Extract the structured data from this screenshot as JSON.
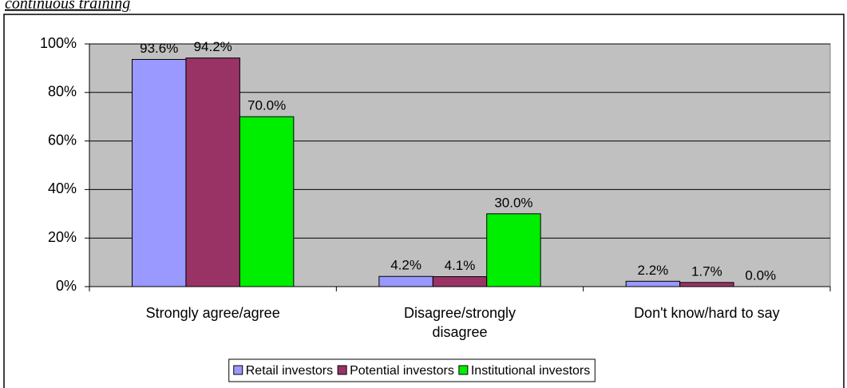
{
  "heading": "continuous training",
  "chart_data": {
    "type": "bar",
    "categories": [
      "Strongly agree/agree",
      "Disagree/strongly disagree",
      "Don't know/hard to say"
    ],
    "series": [
      {
        "name": "Retail investors",
        "color": "#9999ff",
        "values": [
          93.6,
          4.2,
          2.2
        ],
        "value_labels": [
          "93.6%",
          "4.2%",
          "2.2%"
        ]
      },
      {
        "name": "Potential investors",
        "color": "#993366",
        "values": [
          94.2,
          4.1,
          1.7
        ],
        "value_labels": [
          "94.2%",
          "4.1%",
          "1.7%"
        ]
      },
      {
        "name": "Institutional investors",
        "color": "#00ee00",
        "values": [
          70.0,
          30.0,
          0.0
        ],
        "value_labels": [
          "70.0%",
          "30.0%",
          "0.0%"
        ]
      }
    ],
    "ylim": [
      0,
      100
    ],
    "yticks": [
      {
        "value": 0,
        "label": "0%"
      },
      {
        "value": 20,
        "label": "20%"
      },
      {
        "value": 40,
        "label": "40%"
      },
      {
        "value": 60,
        "label": "60%"
      },
      {
        "value": 80,
        "label": "80%"
      },
      {
        "value": 100,
        "label": "100%"
      }
    ],
    "grid": true,
    "legend": "bottom"
  }
}
